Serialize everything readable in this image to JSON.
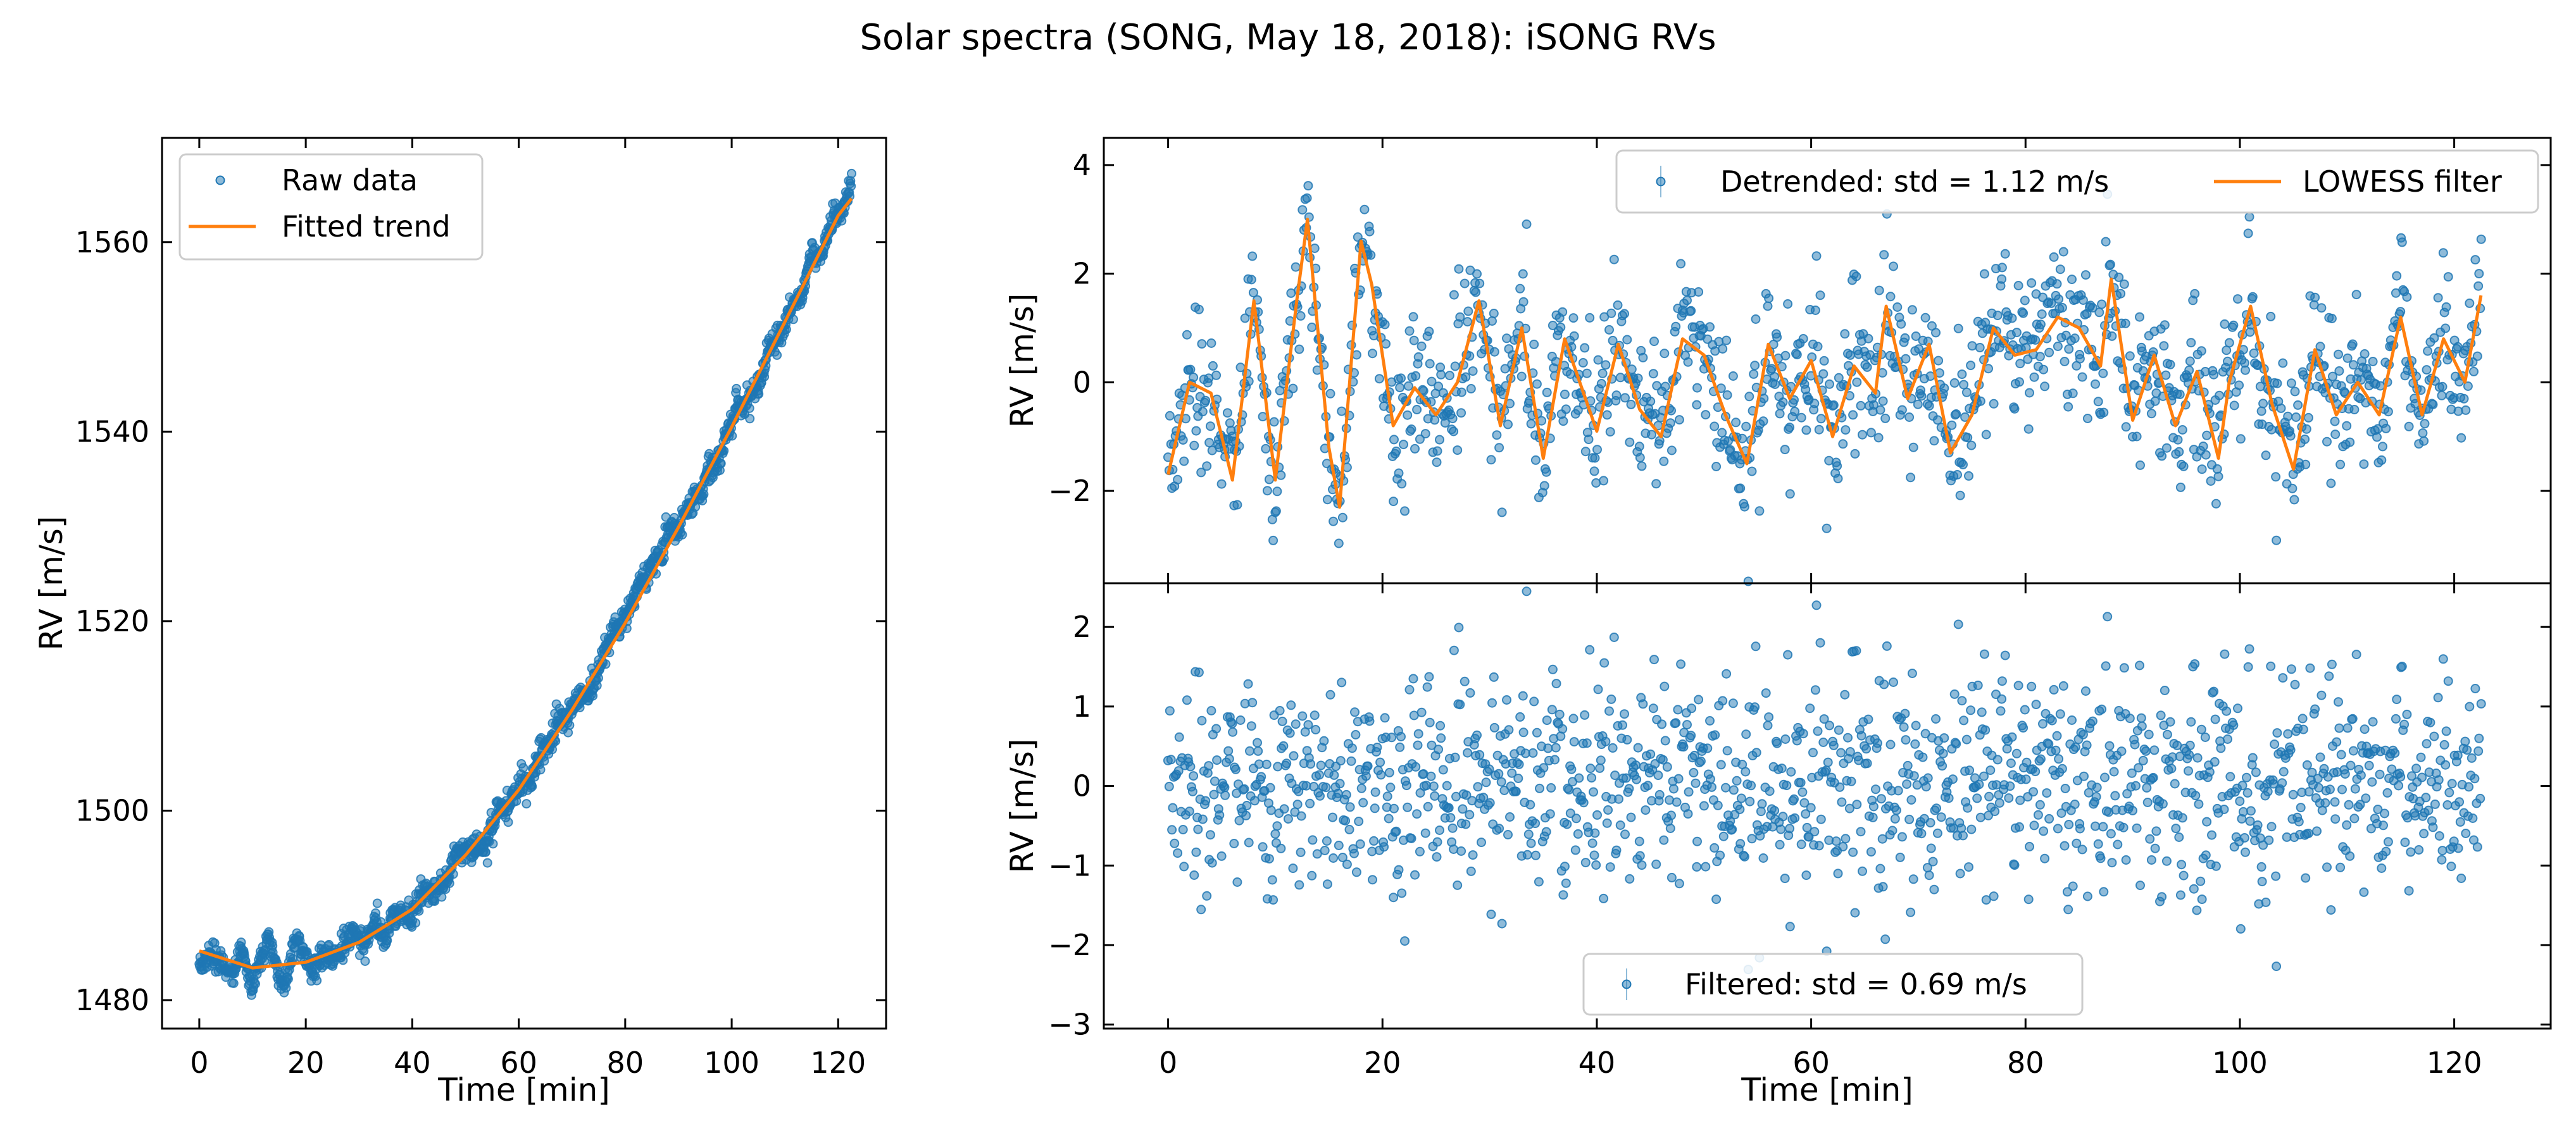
{
  "figure": {
    "title": "Solar spectra (SONG, May 18, 2018): iSONG RVs"
  },
  "colors": {
    "points": "#1f77b4",
    "line": "#ff7f0e",
    "axis": "#000000",
    "background": "#ffffff"
  },
  "chart_data": [
    {
      "id": "raw",
      "type": "scatter",
      "title": "",
      "xlabel": "Time [min]",
      "ylabel": "RV [m/s]",
      "xlim": [
        -7,
        129
      ],
      "ylim": [
        1477,
        1571
      ],
      "xticks": [
        0,
        20,
        40,
        60,
        80,
        100,
        120
      ],
      "xtick_labels": [
        "0",
        "20",
        "40",
        "60",
        "80",
        "100",
        "120"
      ],
      "yticks": [
        1480,
        1500,
        1520,
        1540,
        1560
      ],
      "ytick_labels": [
        "1480",
        "1500",
        "1520",
        "1540",
        "1560"
      ],
      "legend": {
        "position": "upper-left",
        "entries": [
          "Raw data",
          "Fitted trend"
        ]
      },
      "series": [
        {
          "name": "Raw data",
          "kind": "scatter",
          "n_points": 1400,
          "x_range": [
            0,
            122.5
          ],
          "description": "trend plus ~1.1 m/s oscillation and ~0.7 m/s noise"
        },
        {
          "name": "Fitted trend",
          "kind": "line",
          "x": [
            0,
            10,
            20,
            30,
            40,
            50,
            60,
            70,
            80,
            90,
            100,
            110,
            120,
            122.5
          ],
          "y": [
            1485.2,
            1483.4,
            1484.0,
            1486.1,
            1489.6,
            1495.3,
            1502.2,
            1510.6,
            1519.8,
            1529.9,
            1540.5,
            1551.6,
            1562.8,
            1564.6
          ]
        }
      ]
    },
    {
      "id": "detrended",
      "type": "scatter",
      "title": "",
      "xlabel": "",
      "ylabel": "RV [m/s]",
      "xlim": [
        -6,
        129
      ],
      "ylim": [
        -3.7,
        4.5
      ],
      "xticks": [
        0,
        20,
        40,
        60,
        80,
        100,
        120
      ],
      "yticks": [
        -2,
        0,
        2,
        4
      ],
      "ytick_labels": [
        "−2",
        "0",
        "2",
        "4"
      ],
      "legend": {
        "position": "top-right",
        "entries": [
          "Detrended: std = 1.12 m/s",
          "LOWESS filter"
        ]
      },
      "series": [
        {
          "name": "Detrended: std = 1.12 m/s",
          "kind": "scatter",
          "std": 1.12,
          "n_points": 1400,
          "x_range": [
            0,
            122.5
          ]
        },
        {
          "name": "LOWESS filter",
          "kind": "line",
          "x": [
            0,
            2,
            4,
            6,
            8,
            10,
            12,
            13,
            15,
            16,
            18,
            19,
            21,
            23,
            25,
            27,
            29,
            31,
            33,
            35,
            37,
            40,
            42,
            44,
            46,
            48,
            50,
            52,
            54,
            56,
            58,
            60,
            62,
            64,
            66,
            67,
            69,
            71,
            73,
            75,
            77,
            79,
            81,
            83,
            85,
            87,
            88,
            90,
            92,
            94,
            96,
            98,
            99,
            101,
            103,
            105,
            107,
            109,
            111,
            113,
            115,
            117,
            119,
            121,
            122.5
          ],
          "y": [
            -1.7,
            0.0,
            -0.2,
            -1.8,
            1.5,
            -1.8,
            1.5,
            3.0,
            -1.2,
            -2.3,
            2.6,
            1.8,
            -0.8,
            -0.1,
            -0.6,
            0.0,
            1.5,
            -0.8,
            1.0,
            -1.4,
            0.8,
            -0.9,
            0.7,
            -0.5,
            -1.0,
            0.8,
            0.5,
            -0.6,
            -1.5,
            0.7,
            -0.3,
            0.4,
            -1.0,
            0.3,
            -0.2,
            1.4,
            -0.3,
            0.7,
            -1.3,
            -0.6,
            1.0,
            0.5,
            0.6,
            1.2,
            1.0,
            0.3,
            1.9,
            -0.7,
            0.5,
            -0.8,
            0.2,
            -1.4,
            0.0,
            1.4,
            -0.4,
            -1.6,
            0.6,
            -0.6,
            0.0,
            -0.6,
            1.2,
            -0.6,
            0.8,
            0.0,
            1.6
          ]
        }
      ]
    },
    {
      "id": "filtered",
      "type": "scatter",
      "title": "",
      "xlabel": "Time [min]",
      "ylabel": "RV [m/s]",
      "xlim": [
        -6,
        129
      ],
      "ylim": [
        -3.05,
        2.55
      ],
      "xticks": [
        0,
        20,
        40,
        60,
        80,
        100,
        120
      ],
      "xtick_labels": [
        "0",
        "20",
        "40",
        "60",
        "80",
        "100",
        "120"
      ],
      "yticks": [
        -3,
        -2,
        -1,
        0,
        1,
        2
      ],
      "ytick_labels": [
        "−3",
        "−2",
        "−1",
        "0",
        "1",
        "2"
      ],
      "legend": {
        "position": "lower-center",
        "entries": [
          "Filtered: std = 0.69 m/s"
        ]
      },
      "series": [
        {
          "name": "Filtered: std = 0.69 m/s",
          "kind": "scatter",
          "std": 0.69,
          "n_points": 1400,
          "x_range": [
            0,
            122.5
          ]
        }
      ]
    }
  ]
}
